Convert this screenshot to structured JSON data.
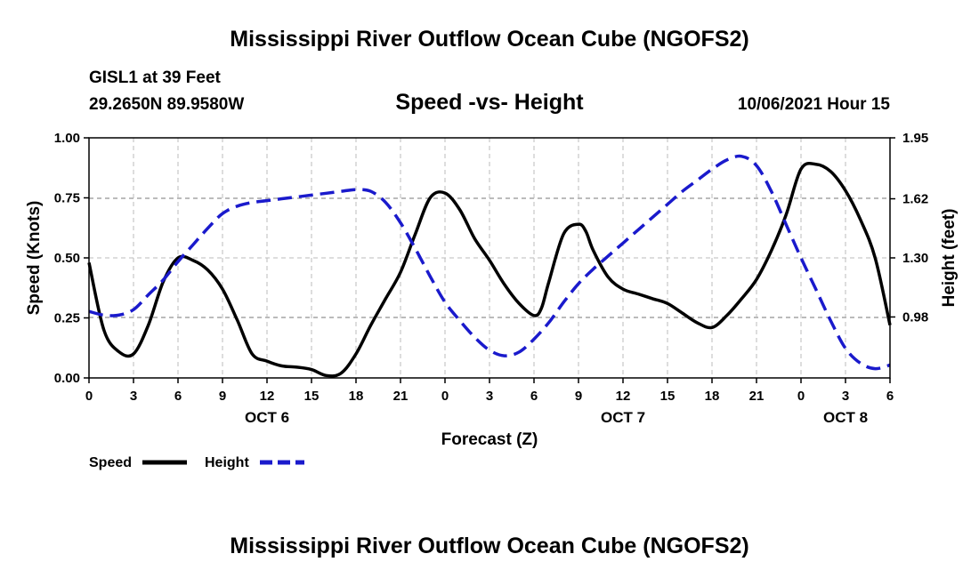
{
  "title": "Mississippi River Outflow Ocean Cube (NGOFS2)",
  "footer_title": "Mississippi River Outflow Ocean Cube (NGOFS2)",
  "station_line1": "GISL1 at 39 Feet",
  "station_line2": "29.2650N  89.9580W",
  "subtitle": "Speed -vs- Height",
  "datetime": "10/06/2021 Hour 15",
  "colors": {
    "speed": "#000000",
    "height": "#1a1acc",
    "grid": "#bbbbbb"
  },
  "chart_data": {
    "type": "line",
    "xlabel": "Forecast (Z)",
    "ylabel_left": "Speed (Knots)",
    "ylabel_right": "Height (feet)",
    "xlim": [
      0,
      54
    ],
    "ylim_left": [
      0,
      1.0
    ],
    "ylim_right": [
      0.65,
      1.95
    ],
    "x_ticks": [
      0,
      3,
      6,
      9,
      12,
      15,
      18,
      21,
      24,
      27,
      30,
      33,
      36,
      39,
      42,
      45,
      48,
      51,
      54
    ],
    "x_tick_labels": [
      "0",
      "3",
      "6",
      "9",
      "12",
      "15",
      "18",
      "21",
      "0",
      "3",
      "6",
      "9",
      "12",
      "15",
      "18",
      "21",
      "0",
      "3",
      "6"
    ],
    "y_left_ticks": [
      0,
      0.25,
      0.5,
      0.75,
      1.0
    ],
    "y_left_tick_labels": [
      "0.00",
      "0.25",
      "0.50",
      "0.75",
      "1.00"
    ],
    "y_right_ticks": [
      0.98,
      1.3,
      1.62,
      1.95
    ],
    "y_right_tick_labels": [
      "0.98",
      "1.30",
      "1.62",
      "1.95"
    ],
    "date_labels": [
      {
        "x": 12,
        "label": "OCT 6"
      },
      {
        "x": 36,
        "label": "OCT 7"
      },
      {
        "x": 51,
        "label": "OCT 8"
      }
    ],
    "grid": true,
    "legend": [
      {
        "label": "Speed",
        "series": "speed"
      },
      {
        "label": "Height",
        "series": "height"
      }
    ],
    "series": [
      {
        "name": "Speed",
        "axis": "left",
        "style": "solid",
        "x": [
          0,
          1,
          2,
          3,
          4,
          5,
          6,
          7,
          8,
          9,
          10,
          11,
          12,
          13,
          14,
          15,
          16,
          17,
          18,
          19,
          20,
          21,
          22,
          23,
          24,
          25,
          26,
          27,
          28,
          29,
          30,
          30.5,
          31,
          32,
          33,
          33.5,
          34,
          35,
          36,
          37,
          38,
          39,
          40,
          41,
          42,
          43,
          44,
          45,
          46,
          47,
          48,
          49,
          50,
          51,
          52,
          53,
          54
        ],
        "values": [
          0.48,
          0.2,
          0.11,
          0.1,
          0.22,
          0.4,
          0.5,
          0.49,
          0.45,
          0.37,
          0.24,
          0.1,
          0.07,
          0.05,
          0.045,
          0.035,
          0.01,
          0.02,
          0.1,
          0.22,
          0.33,
          0.44,
          0.6,
          0.75,
          0.77,
          0.7,
          0.58,
          0.49,
          0.39,
          0.31,
          0.26,
          0.29,
          0.4,
          0.6,
          0.64,
          0.61,
          0.53,
          0.42,
          0.37,
          0.35,
          0.33,
          0.31,
          0.27,
          0.23,
          0.21,
          0.26,
          0.33,
          0.41,
          0.53,
          0.68,
          0.87,
          0.89,
          0.86,
          0.78,
          0.66,
          0.5,
          0.22
        ]
      },
      {
        "name": "Height",
        "axis": "right",
        "style": "dashed",
        "x": [
          0,
          1,
          2,
          3,
          4,
          5,
          6,
          7,
          8,
          9,
          10,
          11,
          12,
          13,
          14,
          15,
          16,
          17,
          18,
          19,
          20,
          21,
          22,
          23,
          24,
          25,
          26,
          27,
          28,
          29,
          30,
          31,
          32,
          33,
          34,
          35,
          36,
          37,
          38,
          39,
          40,
          41,
          42,
          43,
          44,
          45,
          46,
          47,
          48,
          49,
          50,
          51,
          52,
          53,
          54
        ],
        "values": [
          1.01,
          0.99,
          0.99,
          1.02,
          1.1,
          1.18,
          1.28,
          1.37,
          1.46,
          1.54,
          1.58,
          1.6,
          1.61,
          1.62,
          1.63,
          1.64,
          1.65,
          1.66,
          1.67,
          1.66,
          1.6,
          1.49,
          1.35,
          1.2,
          1.06,
          0.96,
          0.87,
          0.8,
          0.77,
          0.79,
          0.86,
          0.95,
          1.06,
          1.16,
          1.24,
          1.31,
          1.38,
          1.45,
          1.52,
          1.59,
          1.66,
          1.72,
          1.78,
          1.83,
          1.85,
          1.8,
          1.66,
          1.48,
          1.3,
          1.13,
          0.96,
          0.81,
          0.73,
          0.7,
          0.72
        ]
      }
    ]
  }
}
